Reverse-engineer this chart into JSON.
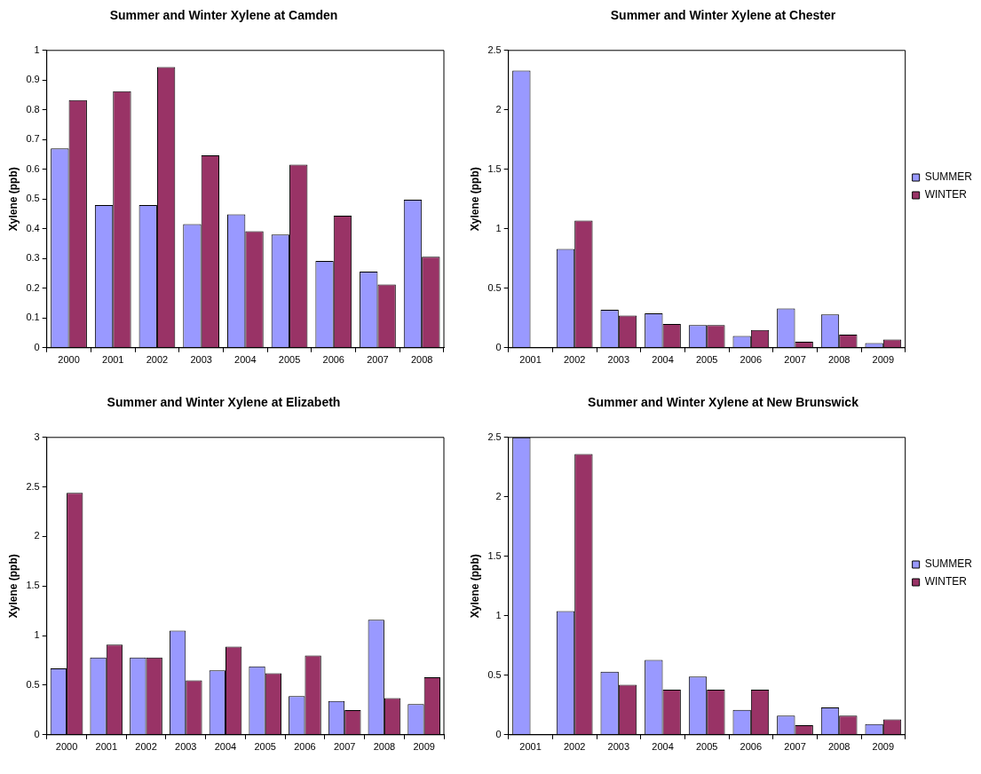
{
  "chart_data": [
    {
      "type": "bar",
      "title": "Summer and Winter Xylene at Camden",
      "ylabel": "Xylene (ppb)",
      "categories": [
        "2000",
        "2001",
        "2002",
        "2003",
        "2004",
        "2005",
        "2006",
        "2007",
        "2008"
      ],
      "series": [
        {
          "color": "#9999ff",
          "values": [
            0.67,
            0.48,
            0.48,
            0.416,
            0.449,
            0.381,
            0.292,
            0.256,
            0.498
          ]
        },
        {
          "color": "#993366",
          "values": [
            0.833,
            0.863,
            0.944,
            0.647,
            0.392,
            0.616,
            0.444,
            0.213,
            0.306
          ]
        }
      ],
      "ylim": [
        0,
        1
      ],
      "yticks": [
        0,
        0.1,
        0.2,
        0.3,
        0.4,
        0.5,
        0.6,
        0.7,
        0.8,
        0.9,
        1
      ],
      "grid": false,
      "legend": false
    },
    {
      "type": "bar",
      "title": "Summer and Winter Xylene at Chester",
      "ylabel": "Xylene (ppb)",
      "categories": [
        "2001",
        "2002",
        "2003",
        "2004",
        "2005",
        "2006",
        "2007",
        "2008",
        "2009"
      ],
      "series": [
        {
          "name": "SUMMER",
          "color": "#9999ff",
          "values": [
            2.33,
            0.83,
            0.32,
            0.29,
            0.19,
            0.1,
            0.33,
            0.28,
            0.04
          ]
        },
        {
          "name": "WINTER",
          "color": "#993366",
          "values": [
            null,
            1.07,
            0.27,
            0.2,
            0.19,
            0.15,
            0.05,
            0.11,
            0.07
          ]
        }
      ],
      "ylim": [
        0,
        2.5
      ],
      "yticks": [
        0,
        0.5,
        1,
        1.5,
        2,
        2.5
      ],
      "grid": false,
      "legend": "right"
    },
    {
      "type": "bar",
      "title": "Summer and Winter Xylene at Elizabeth",
      "ylabel": "Xylene (ppb)",
      "categories": [
        "2000",
        "2001",
        "2002",
        "2003",
        "2004",
        "2005",
        "2006",
        "2007",
        "2008",
        "2009"
      ],
      "series": [
        {
          "color": "#9999ff",
          "values": [
            0.67,
            0.78,
            0.78,
            1.05,
            0.65,
            0.69,
            0.39,
            0.34,
            1.16,
            0.31
          ]
        },
        {
          "color": "#993366",
          "values": [
            2.44,
            0.91,
            0.78,
            0.55,
            0.89,
            0.62,
            0.8,
            0.25,
            0.37,
            0.58
          ]
        }
      ],
      "ylim": [
        0,
        3
      ],
      "yticks": [
        0,
        0.5,
        1,
        1.5,
        2,
        2.5,
        3
      ],
      "grid": false,
      "legend": false
    },
    {
      "type": "bar",
      "title": "Summer and Winter Xylene at New Brunswick",
      "ylabel": "Xylene (ppb)",
      "categories": [
        "2001",
        "2002",
        "2003",
        "2004",
        "2005",
        "2006",
        "2007",
        "2008",
        "2009"
      ],
      "series": [
        {
          "name": "SUMMER",
          "color": "#9999ff",
          "values": [
            2.5,
            1.04,
            0.53,
            0.63,
            0.49,
            0.21,
            0.16,
            0.23,
            0.09
          ]
        },
        {
          "name": "WINTER",
          "color": "#993366",
          "values": [
            null,
            2.36,
            0.42,
            0.38,
            0.38,
            0.38,
            0.08,
            0.16,
            0.13
          ]
        }
      ],
      "ylim": [
        0,
        2.5
      ],
      "yticks": [
        0,
        0.5,
        1,
        1.5,
        2,
        2.5
      ],
      "grid": false,
      "legend": "right"
    }
  ]
}
